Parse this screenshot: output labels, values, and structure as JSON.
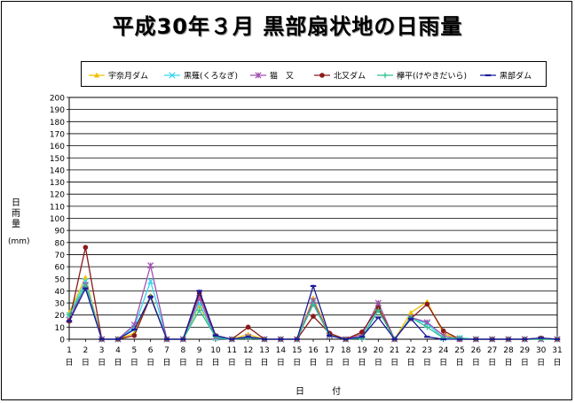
{
  "title": "平成30年３月  黒部扇状地の日雨量",
  "chart_data": {
    "type": "line",
    "ylabel": "日雨量",
    "yunit": "(mm)",
    "xlabel": "日  付",
    "ylim": [
      0,
      200
    ],
    "ystep": 10,
    "grid": true,
    "legend_position": "top",
    "categories": [
      "1",
      "2",
      "3",
      "4",
      "5",
      "6",
      "7",
      "8",
      "9",
      "10",
      "11",
      "12",
      "13",
      "14",
      "15",
      "16",
      "17",
      "18",
      "19",
      "20",
      "21",
      "22",
      "23",
      "24",
      "25",
      "26",
      "27",
      "28",
      "29",
      "30",
      "31"
    ],
    "category_suffix": "日",
    "series": [
      {
        "name": "宇奈月ダム",
        "color": "#f0c000",
        "marker": "triangle",
        "values": [
          22,
          51,
          0,
          0,
          5,
          36,
          0,
          0,
          28,
          2,
          0,
          4,
          0,
          0,
          0,
          34,
          4,
          0,
          5,
          28,
          0,
          22,
          31,
          5,
          0,
          0,
          0,
          0,
          0,
          0,
          0
        ]
      },
      {
        "name": "黒薙(くろなぎ)",
        "color": "#33d6f0",
        "marker": "x",
        "values": [
          20,
          48,
          0,
          0,
          10,
          48,
          0,
          0,
          30,
          1,
          0,
          2,
          0,
          0,
          0,
          30,
          3,
          0,
          2,
          25,
          0,
          17,
          13,
          1,
          1,
          0,
          0,
          0,
          0,
          0,
          0
        ]
      },
      {
        "name": "猫　又",
        "color": "#a050b0",
        "marker": "star",
        "values": [
          16,
          45,
          0,
          0,
          12,
          61,
          0,
          0,
          34,
          2,
          0,
          2,
          0,
          0,
          0,
          32,
          3,
          0,
          4,
          30,
          0,
          18,
          14,
          3,
          0,
          0,
          0,
          0,
          0,
          0,
          0
        ]
      },
      {
        "name": "北又ダム",
        "color": "#8b1a1a",
        "marker": "circle",
        "values": [
          15,
          76,
          0,
          0,
          3,
          35,
          0,
          0,
          38,
          3,
          0,
          10,
          0,
          0,
          0,
          19,
          5,
          0,
          6,
          26,
          0,
          17,
          29,
          7,
          0,
          0,
          0,
          0,
          0,
          1,
          0
        ]
      },
      {
        "name": "欅平(けやきだいら)",
        "color": "#30c090",
        "marker": "plus",
        "values": [
          20,
          44,
          0,
          0,
          8,
          35,
          0,
          0,
          24,
          2,
          0,
          1,
          0,
          0,
          0,
          29,
          3,
          0,
          1,
          24,
          0,
          18,
          10,
          1,
          1,
          0,
          0,
          0,
          0,
          0,
          0
        ]
      },
      {
        "name": "黒部ダム",
        "color": "#1a1a9a",
        "marker": "dash",
        "values": [
          15,
          42,
          0,
          0,
          8,
          35,
          0,
          0,
          40,
          3,
          0,
          2,
          0,
          0,
          0,
          44,
          3,
          0,
          2,
          18,
          0,
          17,
          2,
          0,
          0,
          0,
          0,
          0,
          0,
          1,
          0
        ]
      }
    ]
  }
}
